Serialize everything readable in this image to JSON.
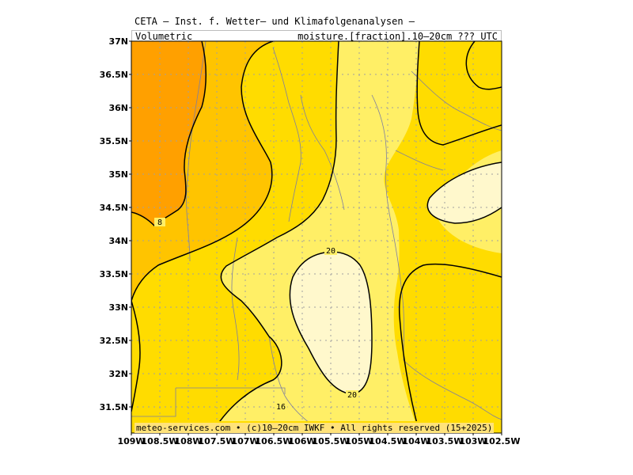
{
  "header": {
    "title": "CETA — Inst. f. Wetter— und Klimafolgenanalysen —",
    "subtitle_left": "Volumetric",
    "subtitle_right": "moisture.[fraction].10–20cm ??? UTC"
  },
  "footer": {
    "credit": "meteo-services.com • (c)10–20cm IWKF • All rights reserved (15+2025)"
  },
  "map": {
    "lat_labels": [
      "37N",
      "36.5N",
      "36N",
      "35.5N",
      "35N",
      "34.5N",
      "34N",
      "33.5N",
      "33N",
      "32.5N",
      "32N",
      "31.5N"
    ],
    "lon_labels": [
      "109W",
      "108.5W",
      "108W",
      "107.5W",
      "107W",
      "106.5W",
      "106W",
      "105.5W",
      "105W",
      "104.5W",
      "104W",
      "103.5W",
      "103W",
      "102.5W"
    ],
    "contour_labels": [
      "8",
      "20",
      "20",
      "16"
    ],
    "colors": {
      "lt8": "#ffa000",
      "c8_12": "#ffc400",
      "c12_16": "#ffdc00",
      "c16_20": "#ffef66",
      "gt20": "#fff8cc",
      "contour": "#000000",
      "rivers": "#7f7f9f",
      "grid": "#a0a0a0"
    }
  }
}
